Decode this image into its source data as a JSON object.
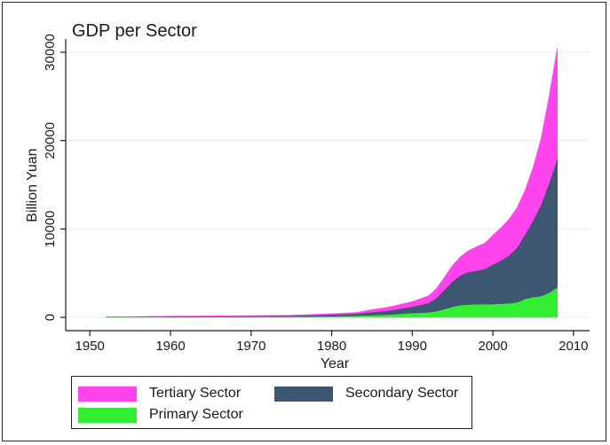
{
  "chart_data": {
    "type": "area",
    "stacked": true,
    "title": "GDP per Sector",
    "xlabel": "Year",
    "ylabel": "Billion Yuan",
    "xlim": [
      1947,
      2012
    ],
    "ylim": [
      -1500,
      31500
    ],
    "x_ticks": [
      1950,
      1960,
      1970,
      1980,
      1990,
      2000,
      2010
    ],
    "y_ticks": [
      0,
      10000,
      20000,
      30000
    ],
    "grid": "horizontal",
    "legend_position": "bottom",
    "x": [
      1952,
      1955,
      1960,
      1965,
      1970,
      1975,
      1978,
      1980,
      1983,
      1985,
      1987,
      1990,
      1992,
      1993,
      1994,
      1995,
      1996,
      1997,
      1998,
      1999,
      2000,
      2001,
      2002,
      2003,
      2004,
      2005,
      2006,
      2007,
      2008
    ],
    "series": [
      {
        "name": "Primary Sector",
        "color": "#33ee33",
        "values": [
          35,
          42,
          35,
          65,
          80,
          95,
          100,
          135,
          200,
          250,
          320,
          500,
          580,
          700,
          950,
          1200,
          1400,
          1450,
          1500,
          1500,
          1500,
          1550,
          1600,
          1700,
          2100,
          2300,
          2400,
          2800,
          3400
        ]
      },
      {
        "name": "Secondary Sector",
        "color": "#3d5672",
        "values": [
          14,
          22,
          65,
          60,
          90,
          95,
          160,
          190,
          225,
          350,
          450,
          720,
          1050,
          1500,
          2200,
          2900,
          3400,
          3700,
          3800,
          4000,
          4500,
          4900,
          5400,
          6200,
          7300,
          8700,
          10400,
          12500,
          14600
        ]
      },
      {
        "name": "Tertiary Sector",
        "color": "#ff44ee",
        "values": [
          20,
          25,
          35,
          40,
          40,
          55,
          90,
          95,
          130,
          280,
          380,
          560,
          800,
          1050,
          1400,
          1800,
          2100,
          2400,
          2700,
          2900,
          3300,
          3700,
          4100,
          4500,
          5000,
          6000,
          7500,
          9800,
          12500
        ]
      }
    ]
  }
}
